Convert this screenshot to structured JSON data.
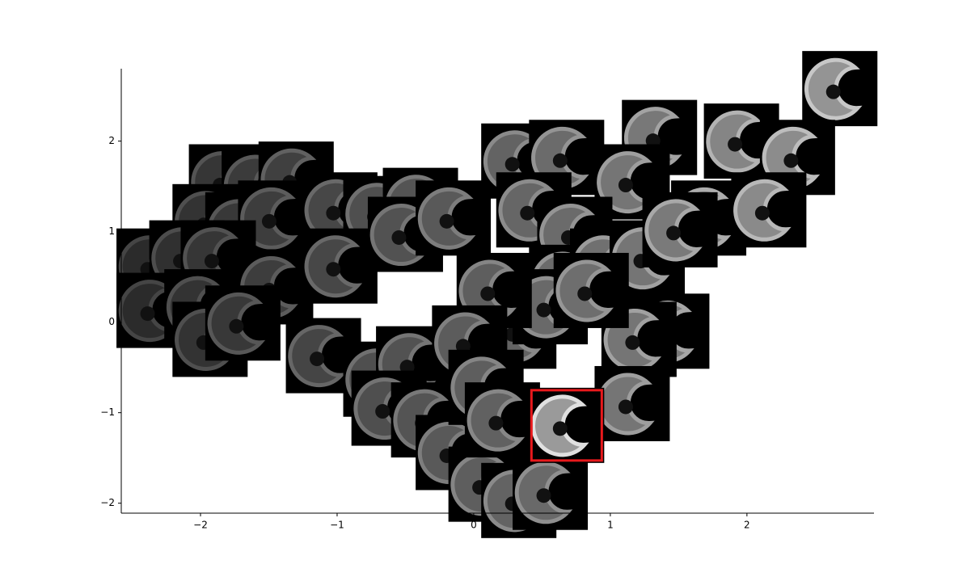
{
  "chart_data": {
    "type": "image_scatter",
    "x": [
      -1.81,
      -1.57,
      -1.3,
      -1.93,
      -1.69,
      -1.45,
      -2.34,
      -2.1,
      -1.87,
      -2.34,
      -1.99,
      -1.45,
      -1.93,
      -1.69,
      -0.98,
      -0.68,
      -0.39,
      -0.98,
      -0.5,
      -0.15,
      0.33,
      0.68,
      1.36,
      1.96,
      2.68,
      2.37,
      0.44,
      1.16,
      1.72,
      2.16,
      0.74,
      0.68,
      0.98,
      1.27,
      1.51,
      1.45,
      1.21,
      0.33,
      0.56,
      0.86,
      0.15,
      1.16,
      -1.1,
      -0.68,
      -0.44,
      -0.03,
      -0.62,
      -0.33,
      -0.15,
      0.09,
      0.33,
      0.56,
      0.09,
      0.21
    ],
    "y": [
      1.55,
      1.51,
      1.58,
      1.11,
      1.02,
      1.15,
      0.62,
      0.71,
      0.71,
      0.13,
      0.17,
      0.39,
      -0.19,
      -0.01,
      1.24,
      1.2,
      1.29,
      0.62,
      0.97,
      1.15,
      1.78,
      1.82,
      2.04,
      2.0,
      2.58,
      1.82,
      1.24,
      1.55,
      1.15,
      1.24,
      0.97,
      0.44,
      0.62,
      0.71,
      1.02,
      -0.1,
      -0.19,
      -0.1,
      0.17,
      0.35,
      0.35,
      -0.9,
      -0.37,
      -0.63,
      -0.46,
      -0.23,
      -0.95,
      -1.08,
      -1.44,
      -1.79,
      -1.97,
      -1.88,
      -0.72,
      -1.08
    ],
    "highlight": {
      "x": 0.68,
      "y": -1.14,
      "color": "#e8191c"
    },
    "xlim": [
      -2.58,
      2.93
    ],
    "ylim": [
      -2.11,
      2.8
    ],
    "xticks": [
      {
        "value": -2,
        "label": "−2"
      },
      {
        "value": -1,
        "label": "−1"
      },
      0,
      1,
      2
    ],
    "yticks": [
      {
        "value": -2,
        "label": "−2"
      },
      {
        "value": -1,
        "label": "−1"
      },
      0,
      1,
      2
    ]
  }
}
